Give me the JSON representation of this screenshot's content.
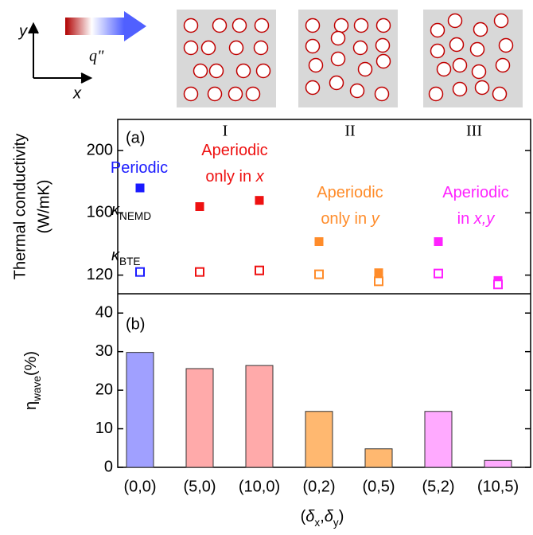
{
  "diagram": {
    "y_label": "y",
    "x_label": "x",
    "flux_label": "q\""
  },
  "chart_data": [
    {
      "type": "scatter",
      "panel_label": "(a)",
      "y_label_lines": [
        "Thermal conductivity",
        "(W/mK)"
      ],
      "ylim": [
        108,
        220
      ],
      "yticks": [
        120,
        160,
        200
      ],
      "regions": [
        "I",
        "II",
        "III"
      ],
      "groups": [
        {
          "lines": [
            [
              {
                "text": "Periodic"
              }
            ]
          ],
          "color": "#1a1aff"
        },
        {
          "lines": [
            [
              {
                "text": "Aperiodic"
              }
            ],
            [
              {
                "text": "only in "
              },
              {
                "text": "x",
                "style": "italic"
              }
            ]
          ],
          "color": "#ee1111"
        },
        {
          "lines": [
            [
              {
                "text": "Aperiodic"
              }
            ],
            [
              {
                "text": "only in "
              },
              {
                "text": "y",
                "style": "italic"
              }
            ]
          ],
          "color": "#ff8c2a"
        },
        {
          "lines": [
            [
              {
                "text": "Aperiodic"
              }
            ],
            [
              {
                "text": "in "
              },
              {
                "text": "x,y",
                "style": "italic"
              }
            ]
          ],
          "color": "#ff22ff"
        }
      ],
      "point_colors": [
        "#1a1aff",
        "#ee1111",
        "#ee1111",
        "#ff8c2a",
        "#ff8c2a",
        "#ff22ff",
        "#ff22ff"
      ],
      "series": [
        {
          "label": [
            {
              "text": "κ",
              "style": "italic"
            },
            {
              "text": "NEMD",
              "style": "sub"
            }
          ],
          "marker": "filled",
          "values": [
            176,
            164,
            168,
            141.5,
            121.5,
            141.5,
            116.5
          ]
        },
        {
          "label": [
            {
              "text": "κ",
              "style": "italic"
            },
            {
              "text": "BTE",
              "style": "sub"
            }
          ],
          "marker": "open",
          "values": [
            122,
            122,
            123,
            120.5,
            116,
            121,
            114
          ]
        }
      ]
    },
    {
      "type": "bar",
      "panel_label": "(b)",
      "y_label": [
        {
          "text": "η"
        },
        {
          "text": "wave",
          "style": "sub"
        },
        {
          "text": "(%)"
        }
      ],
      "categories": [
        "(0,0)",
        "(5,0)",
        "(10,0)",
        "(0,2)",
        "(0,5)",
        "(5,2)",
        "(10,5)"
      ],
      "values": [
        29.8,
        25.6,
        26.4,
        14.5,
        4.8,
        14.5,
        1.8
      ],
      "colors": [
        "#a0a0ff",
        "#ffaaaa",
        "#ffaaaa",
        "#ffb870",
        "#ffb870",
        "#ffaaff",
        "#ffaaff"
      ],
      "ylim": [
        0,
        45
      ],
      "yticks": [
        0,
        10,
        20,
        30,
        40
      ],
      "x_label": [
        {
          "text": "("
        },
        {
          "text": "δ",
          "style": "italic"
        },
        {
          "text": "x",
          "style": "sub"
        },
        {
          "text": ","
        },
        {
          "text": "δ",
          "style": "italic"
        },
        {
          "text": "y",
          "style": "sub"
        },
        {
          "text": ")"
        }
      ]
    }
  ]
}
